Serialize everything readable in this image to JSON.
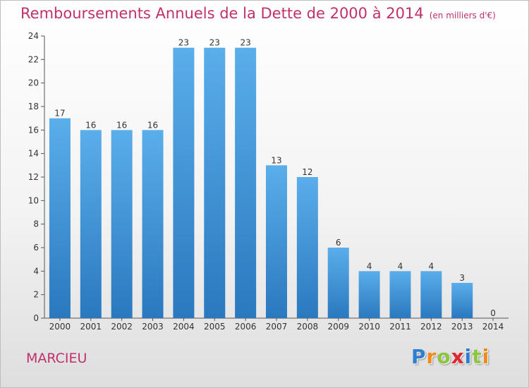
{
  "title": "Remboursements Annuels de la Dette de 2000 à 2014",
  "unit_note": "(en milliers d'€)",
  "town": "MARCIEU",
  "logo": {
    "letters": [
      {
        "ch": "P",
        "color": "#2f7fd0"
      },
      {
        "ch": "r",
        "color": "#f08a1c"
      },
      {
        "ch": "o",
        "color": "#8cc63f"
      },
      {
        "ch": "x",
        "color": "#e0262e"
      },
      {
        "ch": "i",
        "color": "#2f7fd0"
      },
      {
        "ch": "t",
        "color": "#8cc63f"
      },
      {
        "ch": "i",
        "color": "#f08a1c"
      }
    ]
  },
  "colors": {
    "bar_top": "#5aaeea",
    "bar_bottom": "#2a78bf",
    "title": "#c0306a",
    "axis": "#555555"
  },
  "chart_data": {
    "type": "bar",
    "title": "Remboursements Annuels de la Dette de 2000 à 2014",
    "xlabel": "",
    "ylabel": "",
    "categories": [
      "2000",
      "2001",
      "2002",
      "2003",
      "2004",
      "2005",
      "2006",
      "2007",
      "2008",
      "2009",
      "2010",
      "2011",
      "2012",
      "2013",
      "2014"
    ],
    "values": [
      17,
      16,
      16,
      16,
      23,
      23,
      23,
      13,
      12,
      6,
      4,
      4,
      4,
      3,
      0
    ],
    "ylim": [
      0,
      24
    ],
    "yticks": [
      0,
      2,
      4,
      6,
      8,
      10,
      12,
      14,
      16,
      18,
      20,
      22,
      24
    ],
    "grid": false,
    "legend": "none"
  }
}
